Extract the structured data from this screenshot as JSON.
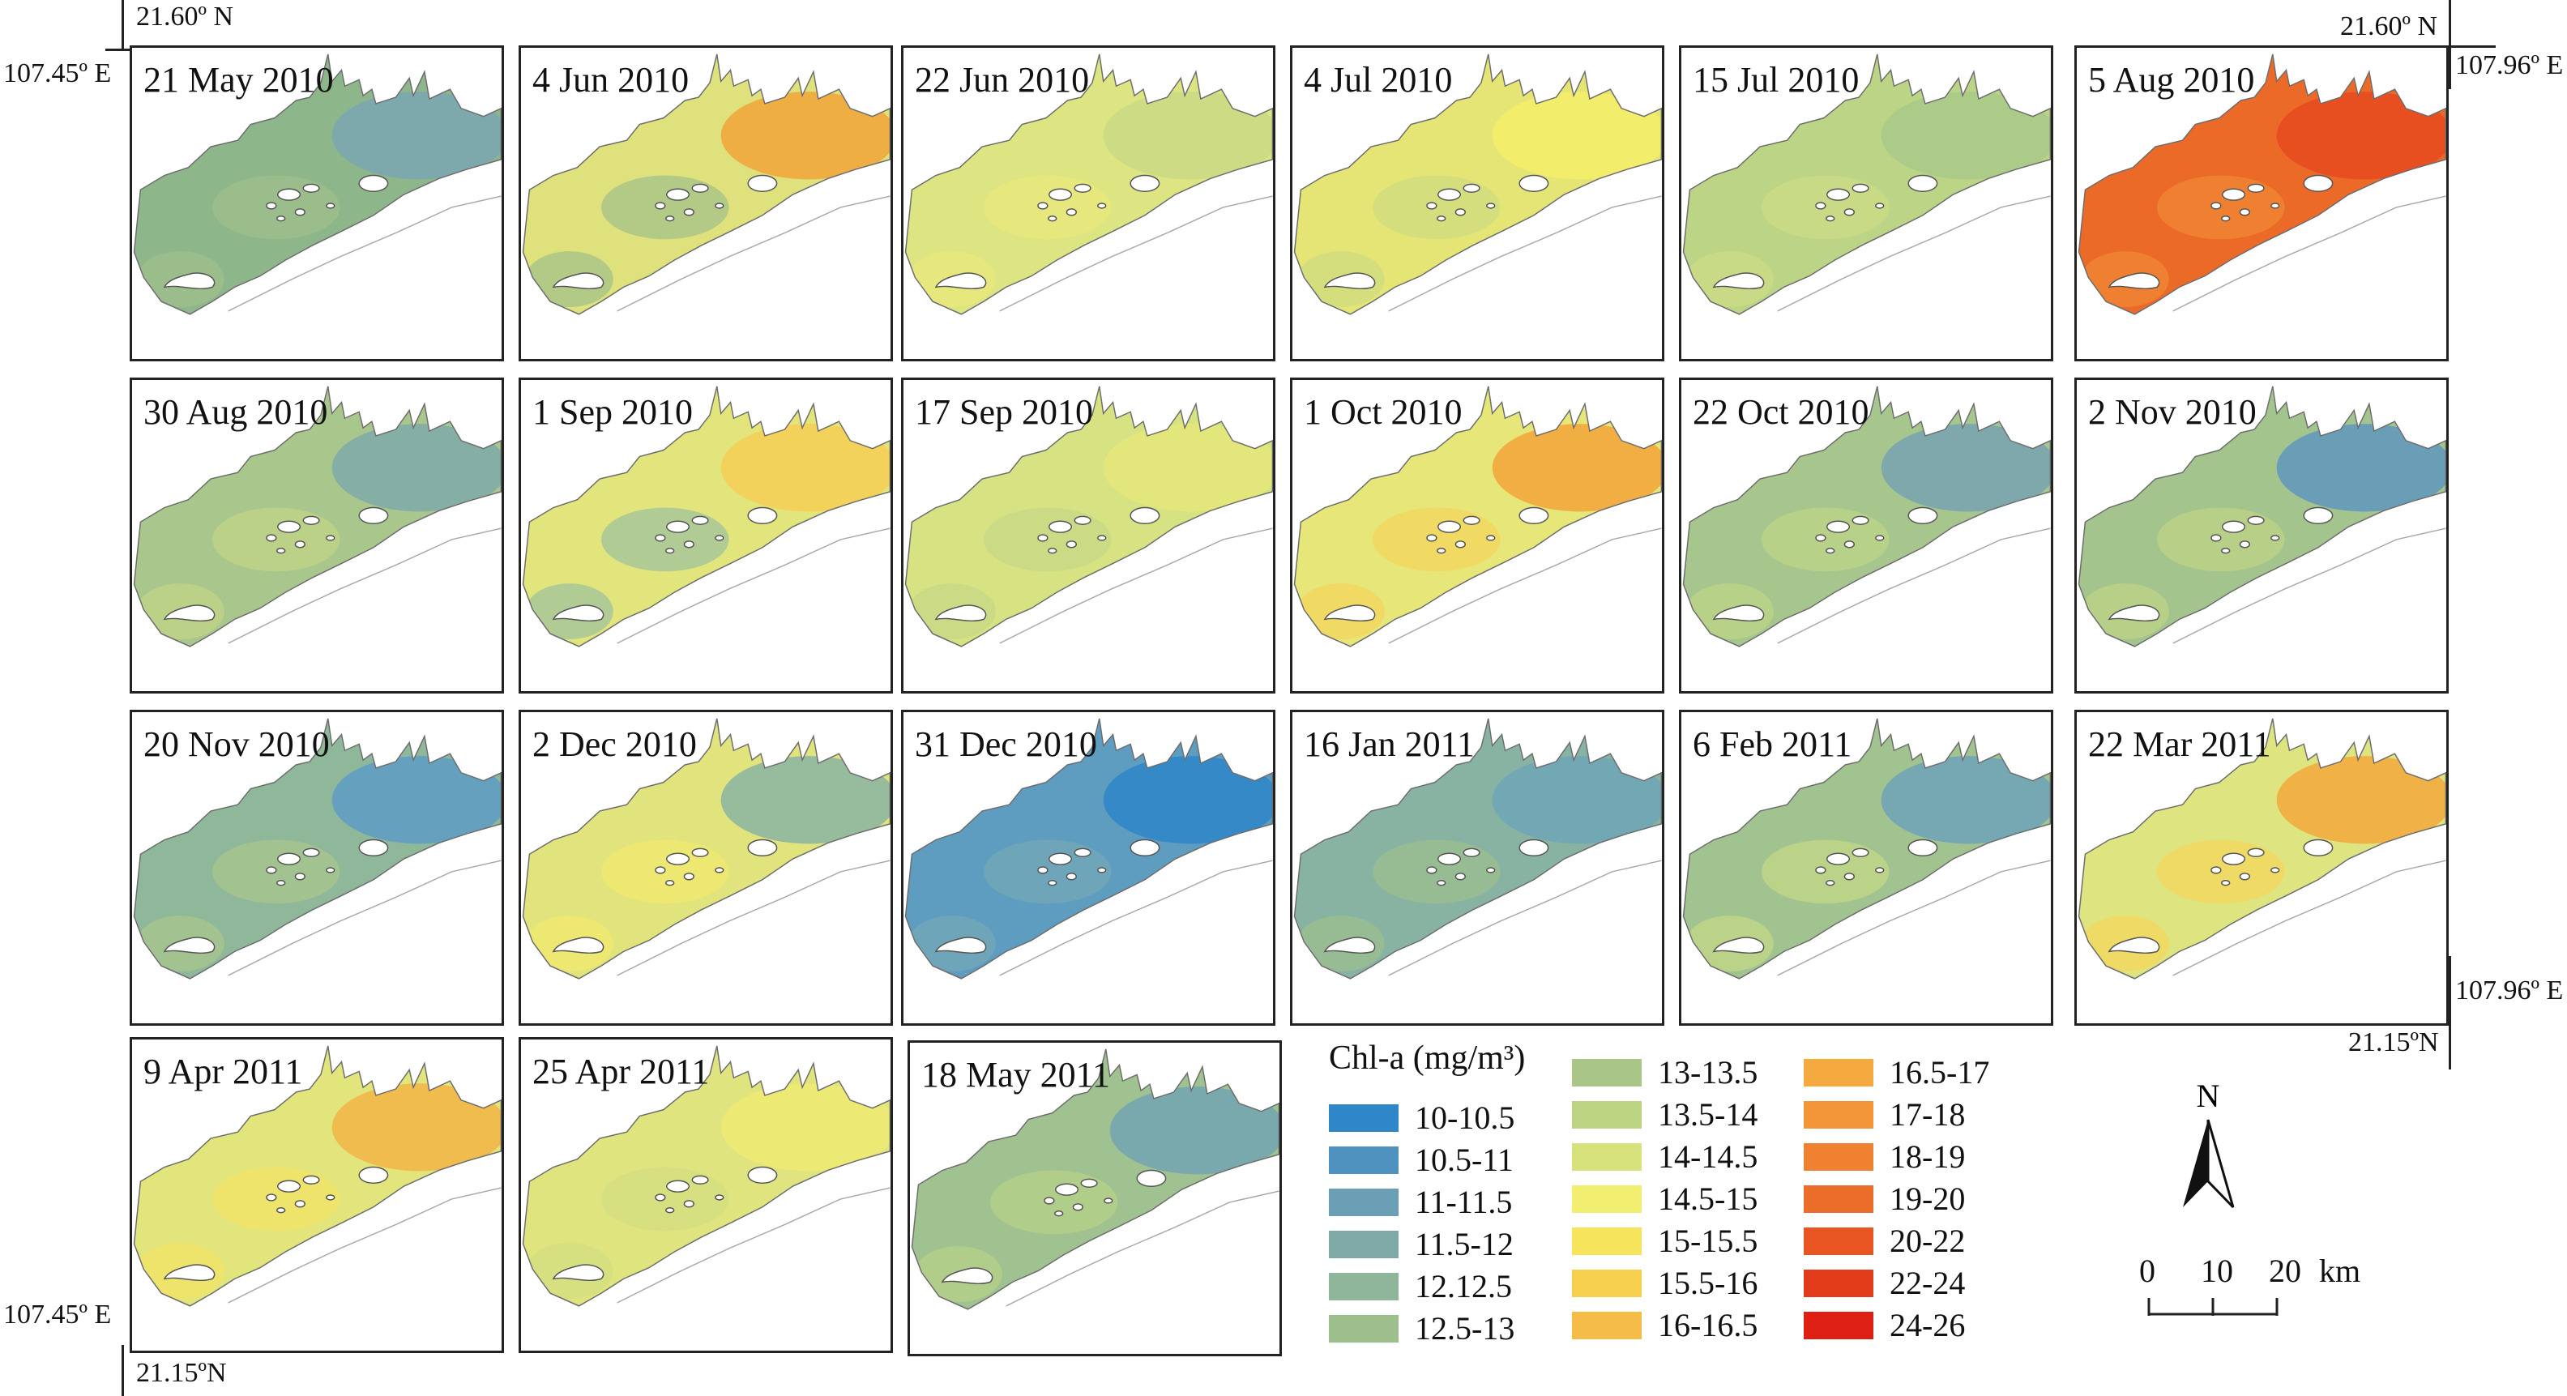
{
  "corners": {
    "top_left_lat": "21.60º N",
    "top_left_lon": "107.45º E",
    "top_right_lat": "21.60º N",
    "top_right_lon": "107.96º E",
    "bottom_right_lon": "107.96º E",
    "bottom_right_lat": "21.15ºN",
    "bottom_left_lon": "107.45º E",
    "bottom_left_lat": "21.15ºN"
  },
  "panels": [
    {
      "label": "21 May 2010",
      "base": "#8db68a",
      "hot": "#7aa7b3",
      "hot2": "#9fc08c"
    },
    {
      "label": "4 Jun 2010",
      "base": "#dfe27c",
      "hot": "#f2a53a",
      "hot2": "#9fc08c"
    },
    {
      "label": "22 Jun 2010",
      "base": "#dde482",
      "hot": "#c9d985",
      "hot2": "#e9ea7a"
    },
    {
      "label": "4 Jul 2010",
      "base": "#e5e576",
      "hot": "#f4ee6a",
      "hot2": "#cfdc80"
    },
    {
      "label": "15 Jul 2010",
      "base": "#bcd486",
      "hot": "#a9c98a",
      "hot2": "#cddd84"
    },
    {
      "label": "5 Aug 2010",
      "base": "#ec6a28",
      "hot": "#e84a1e",
      "hot2": "#f18a35"
    },
    {
      "label": "30 Aug 2010",
      "base": "#a9c78c",
      "hot": "#7fa9a8",
      "hot2": "#c2d584"
    },
    {
      "label": "1 Sep 2010",
      "base": "#e2e57c",
      "hot": "#f4cf55",
      "hot2": "#9cc0a0"
    },
    {
      "label": "17 Sep 2010",
      "base": "#d7e283",
      "hot": "#e5e77a",
      "hot2": "#c6d886"
    },
    {
      "label": "1 Oct 2010",
      "base": "#e6e679",
      "hot": "#f2a53a",
      "hot2": "#f4d45a"
    },
    {
      "label": "22 Oct 2010",
      "base": "#a6c68e",
      "hot": "#77a2b0",
      "hot2": "#bfd586"
    },
    {
      "label": "2 Nov 2010",
      "base": "#a4c48e",
      "hot": "#5f98bd",
      "hot2": "#c0d485"
    },
    {
      "label": "20 Nov 2010",
      "base": "#8fb79a",
      "hot": "#5e9dc6",
      "hot2": "#a9c78c"
    },
    {
      "label": "2 Dec 2010",
      "base": "#e1e47c",
      "hot": "#8ab4a3",
      "hot2": "#f1ea6c"
    },
    {
      "label": "31 Dec 2010",
      "base": "#5e9cc0",
      "hot": "#2f86c8",
      "hot2": "#76a9b5"
    },
    {
      "label": "16 Jan 2011",
      "base": "#88b2a2",
      "hot": "#6ea4b7",
      "hot2": "#9ec08e"
    },
    {
      "label": "6 Feb 2011",
      "base": "#a0c38f",
      "hot": "#6da3b8",
      "hot2": "#c6d886"
    },
    {
      "label": "22 Mar 2011",
      "base": "#dde480",
      "hot": "#f3a83d",
      "hot2": "#f5d658"
    },
    {
      "label": "9 Apr 2011",
      "base": "#e2e57b",
      "hot": "#f3b546",
      "hot2": "#f3e465"
    },
    {
      "label": "25 Apr 2011",
      "base": "#dfe47e",
      "hot": "#eeea73",
      "hot2": "#d1de82"
    },
    {
      "label": "18 May 2011",
      "base": "#9fc290",
      "hot": "#73a4b3",
      "hot2": "#b9d288"
    }
  ],
  "legend": {
    "title": "Chl-a (mg/m³)",
    "classes": [
      {
        "label": "10-10.5",
        "color": "#2f86c8"
      },
      {
        "label": "10.5-11",
        "color": "#4f92c0"
      },
      {
        "label": "11-11.5",
        "color": "#6b9fb6"
      },
      {
        "label": "11.5-12",
        "color": "#80aaa8"
      },
      {
        "label": "12.12.5",
        "color": "#8fb59b"
      },
      {
        "label": "12.5-13",
        "color": "#9dbe8d"
      },
      {
        "label": "13-13.5",
        "color": "#a9c587"
      },
      {
        "label": "13.5-14",
        "color": "#bcd481"
      },
      {
        "label": "14-14.5",
        "color": "#d8e27d"
      },
      {
        "label": "14.5-15",
        "color": "#f1ee70"
      },
      {
        "label": "15-15.5",
        "color": "#f6e55c"
      },
      {
        "label": "15.5-16",
        "color": "#f7d04f"
      },
      {
        "label": "16-16.5",
        "color": "#f5bc48"
      },
      {
        "label": "16.5-17",
        "color": "#f5aa3f"
      },
      {
        "label": "17-18",
        "color": "#f29638"
      },
      {
        "label": "18-19",
        "color": "#ef8130"
      },
      {
        "label": "19-20",
        "color": "#ec6c2a"
      },
      {
        "label": "20-22",
        "color": "#e85522"
      },
      {
        "label": "22-24",
        "color": "#e33c1a"
      },
      {
        "label": "24-26",
        "color": "#dd1f14"
      }
    ]
  },
  "north": {
    "label": "N"
  },
  "scale": {
    "ticks": [
      "0",
      "10",
      "20"
    ],
    "unit": "km"
  }
}
